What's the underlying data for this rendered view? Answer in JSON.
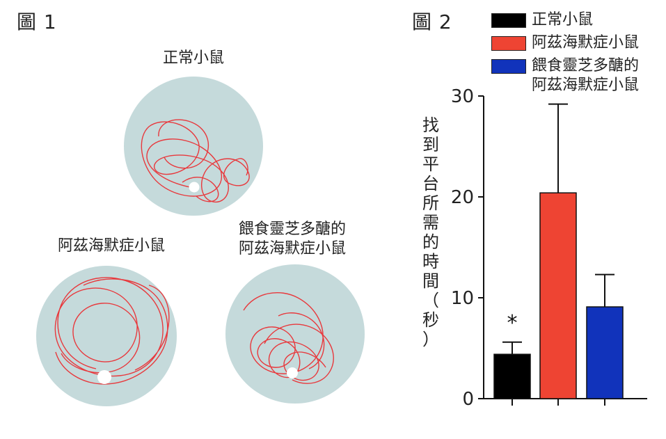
{
  "figure1": {
    "label": "圖 1",
    "pools": [
      {
        "label": "正常小鼠"
      },
      {
        "label": "阿茲海默症小鼠"
      },
      {
        "label_line1": "餵食靈芝多醣的",
        "label_line2": "阿茲海默症小鼠"
      }
    ],
    "colors": {
      "pool": "#c5dadb",
      "path": "#e8383c",
      "platform": "#ffffff"
    }
  },
  "figure2": {
    "label": "圖 2",
    "legend": [
      {
        "text": "正常小鼠",
        "color": "#000000"
      },
      {
        "text": "阿茲海默症小鼠",
        "color": "#ee4433"
      },
      {
        "text_line1": "餵食靈芝多醣的",
        "text_line2": "阿茲海默症小鼠",
        "color": "#1133bb"
      }
    ],
    "ylabel_chars": [
      "找",
      "到",
      "平",
      "台",
      "所",
      "需",
      "的",
      "時",
      "間",
      "（",
      "秒",
      "）"
    ]
  },
  "chart_data": {
    "type": "bar",
    "categories": [
      "正常小鼠",
      "阿茲海默症小鼠",
      "餵食靈芝多醣的阿茲海默症小鼠"
    ],
    "values": [
      4.4,
      20.4,
      9.1
    ],
    "error_upper": [
      5.6,
      29.2,
      12.3
    ],
    "colors": [
      "#000000",
      "#ee4433",
      "#1133bb"
    ],
    "ylabel": "找到平台所需的時間（秒）",
    "ylim": [
      0,
      30
    ],
    "yticks": [
      "0",
      "10",
      "20",
      "30"
    ],
    "annotations": [
      {
        "category": 0,
        "text": "*"
      }
    ],
    "grid": false,
    "legend_position": "top-right"
  }
}
